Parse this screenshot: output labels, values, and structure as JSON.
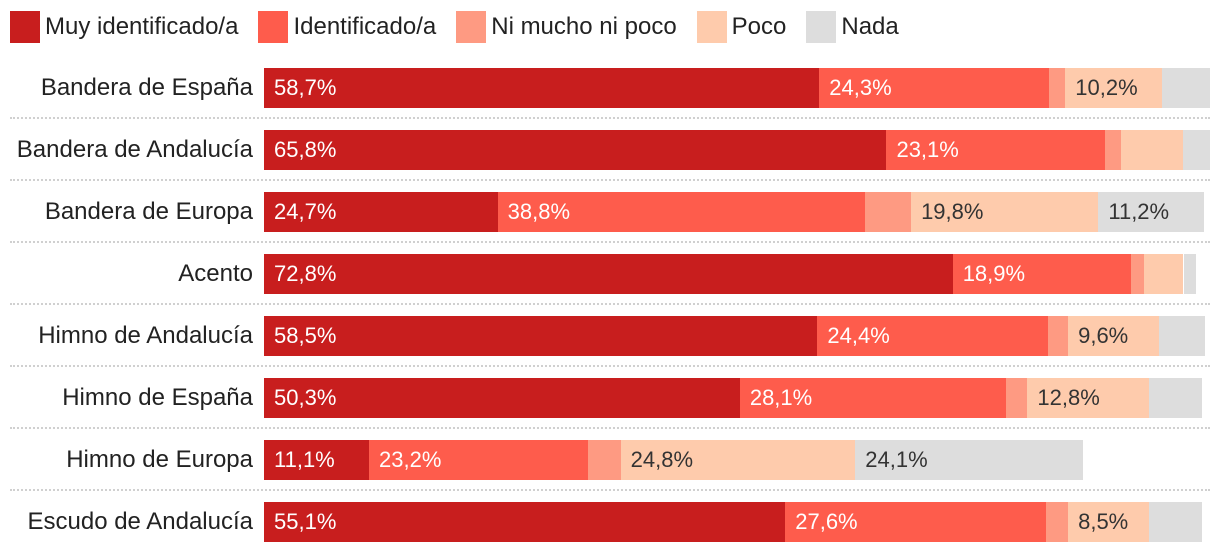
{
  "chart_data": {
    "type": "bar",
    "orientation": "horizontal",
    "stacked": true,
    "normalized": true,
    "title": "",
    "xlabel": "",
    "ylabel": "",
    "xlim": [
      0,
      100
    ],
    "categories": [
      "Bandera de España",
      "Bandera de Andalucía",
      "Bandera de Europa",
      "Acento",
      "Himno de Andalucía",
      "Himno de España",
      "Himno de Europa",
      "Escudo de Andalucía"
    ],
    "series": [
      {
        "name": "Muy identificado/a",
        "color": "#c81e1e",
        "values": [
          58.7,
          65.8,
          24.7,
          72.8,
          58.5,
          50.3,
          11.1,
          55.1
        ]
      },
      {
        "name": "Identificado/a",
        "color": "#fe5c4c",
        "values": [
          24.3,
          23.1,
          38.8,
          18.9,
          24.4,
          28.1,
          23.2,
          27.6
        ]
      },
      {
        "name": "Ni mucho ni poco",
        "color": "#fe9a82",
        "values": [
          1.7,
          1.7,
          4.9,
          1.3,
          2.1,
          2.3,
          3.4,
          2.3
        ]
      },
      {
        "name": "Poco",
        "color": "#fecbac",
        "values": [
          10.2,
          6.5,
          19.8,
          4.2,
          9.6,
          12.8,
          24.8,
          8.5
        ]
      },
      {
        "name": "Nada",
        "color": "#dddddd",
        "values": [
          5.1,
          2.9,
          11.2,
          1.3,
          4.9,
          5.7,
          24.1,
          5.7
        ]
      }
    ],
    "data_labels": [
      [
        "58,7%",
        "24,3%",
        "",
        "10,2%",
        ""
      ],
      [
        "65,8%",
        "23,1%",
        "",
        "",
        ""
      ],
      [
        "24,7%",
        "38,8%",
        "",
        "19,8%",
        "11,2%"
      ],
      [
        "72,8%",
        "18,9%",
        "",
        "",
        ""
      ],
      [
        "58,5%",
        "24,4%",
        "",
        "9,6%",
        ""
      ],
      [
        "50,3%",
        "28,1%",
        "",
        "12,8%",
        ""
      ],
      [
        "11,1%",
        "23,2%",
        "",
        "24,8%",
        "24,1%"
      ],
      [
        "55,1%",
        "27,6%",
        "",
        "8,5%",
        ""
      ]
    ],
    "legend_position": "top-left",
    "grid": false
  }
}
